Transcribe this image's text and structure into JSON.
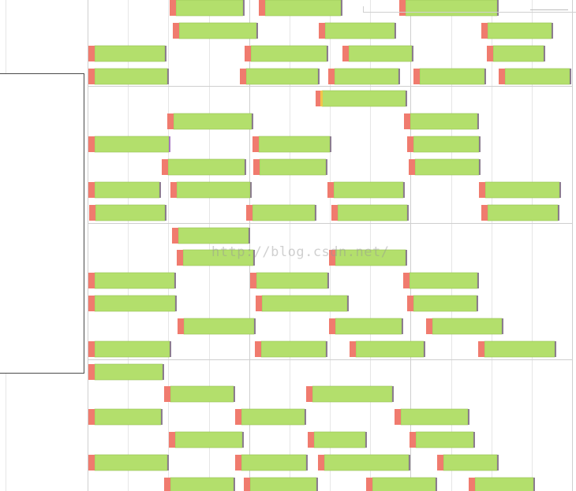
{
  "chart_data": {
    "type": "bar",
    "orientation": "horizontal",
    "subtype": "timeline",
    "groups": 5,
    "rows_per_group": 6,
    "grid": true,
    "colors": {
      "segment_start": "#f07b6e",
      "segment_main": "#b3df6c",
      "segment_main_border": "#94c052",
      "segment_end": "#8c7d8f",
      "segment_alt_start": "#f3c34a",
      "segment_alt_end": "#a877c3",
      "grid_minor": "#e6e6e6",
      "grid_major": "#cfcfcf"
    },
    "rows": [
      [
        [
          215,
          310
        ],
        [
          328,
          434
        ],
        [
          506,
          632
        ]
      ],
      [
        [
          219,
          327
        ],
        [
          404,
          502
        ],
        [
          610,
          701
        ]
      ],
      [
        [
          112,
          211
        ],
        [
          310,
          416
        ],
        [
          434,
          524
        ],
        [
          617,
          691
        ]
      ],
      [
        [
          112,
          214
        ],
        [
          304,
          405
        ],
        [
          416,
          507
        ],
        [
          524,
          616
        ],
        [
          632,
          724
        ]
      ],
      [
        [
          400,
          516
        ]
      ],
      [
        [
          212,
          321
        ],
        [
          512,
          607
        ]
      ],
      [
        [
          112,
          216
        ],
        [
          320,
          420
        ],
        [
          516,
          609
        ]
      ],
      [
        [
          205,
          312
        ],
        [
          321,
          415
        ],
        [
          518,
          609
        ]
      ],
      [
        [
          112,
          204
        ],
        [
          216,
          319
        ],
        [
          415,
          513
        ],
        [
          607,
          711
        ]
      ],
      [
        [
          113,
          211
        ],
        [
          312,
          401
        ],
        [
          420,
          518
        ],
        [
          610,
          709
        ]
      ],
      [
        [
          218,
          317
        ]
      ],
      [
        [
          224,
          323
        ],
        [
          417,
          516
        ]
      ],
      [
        [
          112,
          223
        ],
        [
          317,
          417
        ],
        [
          511,
          607
        ]
      ],
      [
        [
          112,
          224
        ],
        [
          324,
          442
        ],
        [
          516,
          606
        ]
      ],
      [
        [
          225,
          324
        ],
        [
          417,
          511
        ],
        [
          540,
          638
        ]
      ],
      [
        [
          112,
          217
        ],
        [
          323,
          415
        ],
        [
          443,
          539
        ],
        [
          606,
          705
        ]
      ],
      [
        [
          112,
          208
        ]
      ],
      [
        [
          208,
          298
        ],
        [
          388,
          499
        ]
      ],
      [
        [
          112,
          206
        ],
        [
          298,
          388
        ],
        [
          500,
          595
        ]
      ],
      [
        [
          214,
          309
        ],
        [
          390,
          465
        ],
        [
          519,
          602
        ]
      ],
      [
        [
          112,
          214
        ],
        [
          298,
          390
        ],
        [
          403,
          520
        ],
        [
          554,
          632
        ]
      ],
      [
        [
          208,
          298
        ],
        [
          309,
          403
        ],
        [
          464,
          554
        ],
        [
          594,
          678
        ]
      ]
    ],
    "row_offset": 8
  },
  "watermark": "http://blog.csdn.net/"
}
